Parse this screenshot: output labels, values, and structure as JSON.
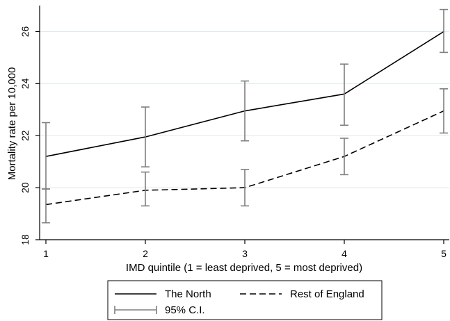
{
  "chart_data": {
    "type": "line",
    "xlabel": "IMD quintile (1 = least deprived, 5 = most deprived)",
    "ylabel": "Mortality rate per 10,000",
    "x": [
      1,
      2,
      3,
      4,
      5
    ],
    "xlim": [
      1,
      5
    ],
    "ylim": [
      18,
      27
    ],
    "yticks": [
      18,
      20,
      22,
      24,
      26
    ],
    "grid": true,
    "legend_position": "bottom",
    "series": [
      {
        "name": "The North",
        "line_style": "solid",
        "values": [
          21.2,
          21.95,
          22.95,
          23.6,
          26.0
        ],
        "ci_lower": [
          19.95,
          20.8,
          21.8,
          22.4,
          25.2
        ],
        "ci_upper": [
          22.5,
          23.1,
          24.1,
          24.75,
          26.85
        ]
      },
      {
        "name": "Rest of England",
        "line_style": "dashed",
        "values": [
          19.35,
          19.9,
          20.0,
          21.2,
          22.95
        ],
        "ci_lower": [
          18.65,
          19.3,
          19.3,
          20.5,
          22.1
        ],
        "ci_upper": [
          19.95,
          20.6,
          20.7,
          21.9,
          23.8
        ]
      }
    ],
    "ci_legend_label": "95% C.I.",
    "colors": {
      "line": "#000000",
      "ci": "#7f7f7f",
      "grid": "#dfe9ee",
      "axis": "#000000"
    }
  }
}
